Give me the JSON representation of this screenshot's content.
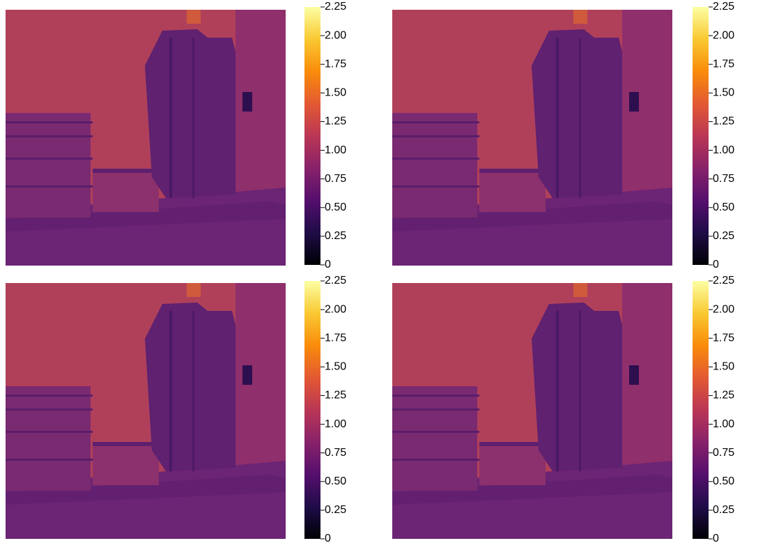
{
  "chart_data": [
    {
      "type": "image",
      "colormap": "inferno",
      "clim": [
        0,
        2.25
      ],
      "cticks": [
        0,
        0.25,
        {
          "value": 0.5,
          "label": "0.50"
        },
        0.75,
        {
          "value": 1,
          "label": "1.00"
        },
        1.25,
        {
          "value": 1.5,
          "label": "1.50"
        },
        1.75,
        {
          "value": 2,
          "label": "2.00"
        },
        2.25
      ]
    },
    {
      "type": "image",
      "colormap": "inferno",
      "clim": [
        0,
        2.25
      ],
      "cticks": [
        0,
        0.25,
        {
          "value": 0.5,
          "label": "0.50"
        },
        0.75,
        {
          "value": 1,
          "label": "1.00"
        },
        1.25,
        {
          "value": 1.5,
          "label": "1.50"
        },
        1.75,
        {
          "value": 2,
          "label": "2.00"
        },
        2.25
      ]
    },
    {
      "type": "image",
      "colormap": "inferno",
      "clim": [
        0,
        2.25
      ],
      "cticks": [
        0,
        0.25,
        {
          "value": 0.5,
          "label": "0.50"
        },
        0.75,
        {
          "value": 1,
          "label": "1.00"
        },
        1.25,
        {
          "value": 1.5,
          "label": "1.50"
        },
        1.75,
        {
          "value": 2,
          "label": "2.00"
        },
        2.25
      ]
    },
    {
      "type": "image",
      "colormap": "inferno",
      "clim": [
        0,
        2.25
      ],
      "cticks": [
        0,
        0.25,
        {
          "value": 0.5,
          "label": "0.50"
        },
        0.75,
        {
          "value": 1,
          "label": "1.00"
        },
        1.25,
        {
          "value": 1.5,
          "label": "1.50"
        },
        1.75,
        {
          "value": 2,
          "label": "2.00"
        },
        2.25
      ]
    }
  ]
}
